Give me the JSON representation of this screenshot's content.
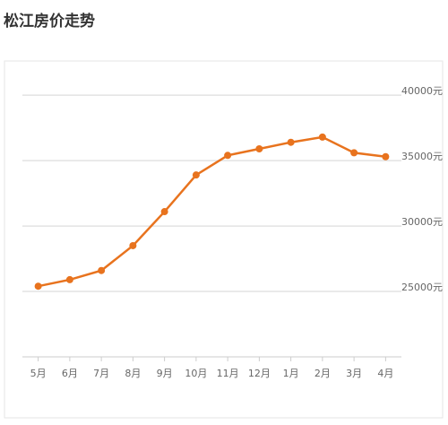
{
  "chart_data": {
    "type": "line",
    "title": "松江房价走势",
    "categories": [
      "5月",
      "6月",
      "7月",
      "8月",
      "9月",
      "10月",
      "11月",
      "12月",
      "1月",
      "2月",
      "3月",
      "4月"
    ],
    "values": [
      25400,
      25900,
      26600,
      28500,
      31100,
      33900,
      35400,
      35900,
      36400,
      36800,
      35600,
      35300
    ],
    "color": "#e8731e",
    "ylim": [
      20000,
      42000
    ],
    "yticks": [
      {
        "value": 25000,
        "label": "25000元"
      },
      {
        "value": 30000,
        "label": "30000元"
      },
      {
        "value": 35000,
        "label": "35000元"
      },
      {
        "value": 40000,
        "label": "40000元"
      }
    ],
    "grid": true
  }
}
